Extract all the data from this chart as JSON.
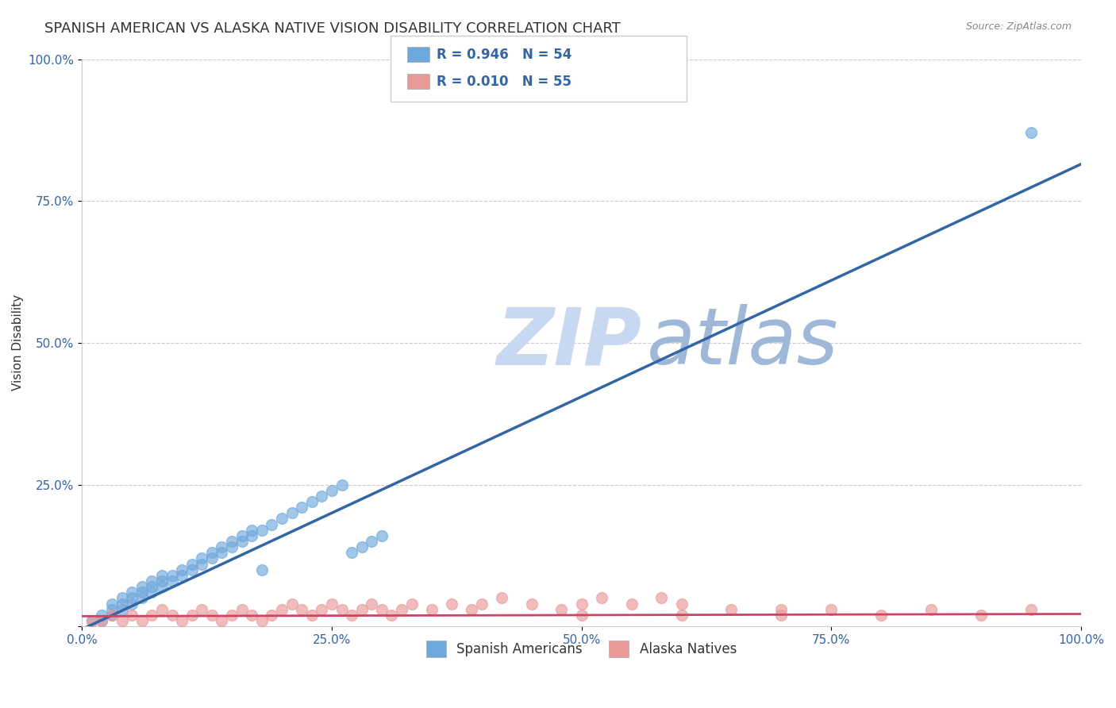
{
  "title": "SPANISH AMERICAN VS ALASKA NATIVE VISION DISABILITY CORRELATION CHART",
  "source": "Source: ZipAtlas.com",
  "ylabel": "Vision Disability",
  "xlabel": "",
  "xlim": [
    0.0,
    1.0
  ],
  "ylim": [
    0.0,
    1.0
  ],
  "xtick_labels": [
    "0.0%",
    "25.0%",
    "50.0%",
    "75.0%",
    "100.0%"
  ],
  "ytick_labels": [
    "",
    "25.0%",
    "50.0%",
    "75.0%",
    "100.0%"
  ],
  "legend_blue_r": "R = 0.946",
  "legend_blue_n": "N = 54",
  "legend_pink_r": "R = 0.010",
  "legend_pink_n": "N = 55",
  "legend_label_blue": "Spanish Americans",
  "legend_label_pink": "Alaska Natives",
  "blue_color": "#6fa8dc",
  "pink_color": "#ea9999",
  "blue_line_color": "#3465a4",
  "pink_line_color": "#cc4466",
  "watermark_zip": "ZIP",
  "watermark_atlas": "atlas",
  "watermark_color_zip": "#c8d8f0",
  "watermark_color_atlas": "#a0b8d8",
  "blue_scatter_x": [
    0.01,
    0.02,
    0.02,
    0.03,
    0.03,
    0.03,
    0.04,
    0.04,
    0.04,
    0.05,
    0.05,
    0.05,
    0.06,
    0.06,
    0.06,
    0.07,
    0.07,
    0.07,
    0.08,
    0.08,
    0.08,
    0.09,
    0.09,
    0.1,
    0.1,
    0.11,
    0.11,
    0.12,
    0.12,
    0.13,
    0.13,
    0.14,
    0.14,
    0.15,
    0.15,
    0.16,
    0.16,
    0.17,
    0.17,
    0.18,
    0.19,
    0.2,
    0.21,
    0.22,
    0.23,
    0.24,
    0.25,
    0.26,
    0.27,
    0.28,
    0.29,
    0.3,
    0.95,
    0.18
  ],
  "blue_scatter_y": [
    0.01,
    0.01,
    0.02,
    0.02,
    0.03,
    0.04,
    0.03,
    0.04,
    0.05,
    0.04,
    0.05,
    0.06,
    0.05,
    0.06,
    0.07,
    0.06,
    0.07,
    0.08,
    0.07,
    0.08,
    0.09,
    0.08,
    0.09,
    0.09,
    0.1,
    0.1,
    0.11,
    0.11,
    0.12,
    0.12,
    0.13,
    0.13,
    0.14,
    0.14,
    0.15,
    0.15,
    0.16,
    0.16,
    0.17,
    0.17,
    0.18,
    0.19,
    0.2,
    0.21,
    0.22,
    0.23,
    0.24,
    0.25,
    0.13,
    0.14,
    0.15,
    0.16,
    0.87,
    0.1
  ],
  "pink_scatter_x": [
    0.01,
    0.02,
    0.03,
    0.04,
    0.05,
    0.06,
    0.07,
    0.08,
    0.09,
    0.1,
    0.11,
    0.12,
    0.13,
    0.14,
    0.15,
    0.16,
    0.17,
    0.18,
    0.19,
    0.2,
    0.21,
    0.22,
    0.23,
    0.24,
    0.25,
    0.26,
    0.27,
    0.28,
    0.29,
    0.3,
    0.31,
    0.32,
    0.33,
    0.35,
    0.37,
    0.39,
    0.4,
    0.42,
    0.45,
    0.48,
    0.5,
    0.52,
    0.55,
    0.58,
    0.6,
    0.65,
    0.7,
    0.75,
    0.8,
    0.85,
    0.9,
    0.95,
    0.5,
    0.6,
    0.7
  ],
  "pink_scatter_y": [
    0.01,
    0.01,
    0.02,
    0.01,
    0.02,
    0.01,
    0.02,
    0.03,
    0.02,
    0.01,
    0.02,
    0.03,
    0.02,
    0.01,
    0.02,
    0.03,
    0.02,
    0.01,
    0.02,
    0.03,
    0.04,
    0.03,
    0.02,
    0.03,
    0.04,
    0.03,
    0.02,
    0.03,
    0.04,
    0.03,
    0.02,
    0.03,
    0.04,
    0.03,
    0.04,
    0.03,
    0.04,
    0.05,
    0.04,
    0.03,
    0.04,
    0.05,
    0.04,
    0.05,
    0.04,
    0.03,
    0.02,
    0.03,
    0.02,
    0.03,
    0.02,
    0.03,
    0.02,
    0.02,
    0.03
  ],
  "blue_slope": 0.82,
  "blue_intercept": -0.005,
  "pink_slope": 0.004,
  "pink_intercept": 0.018,
  "background_color": "#ffffff",
  "grid_color": "#cccccc",
  "title_fontsize": 13,
  "axis_label_fontsize": 11,
  "tick_fontsize": 11,
  "legend_fontsize": 12
}
